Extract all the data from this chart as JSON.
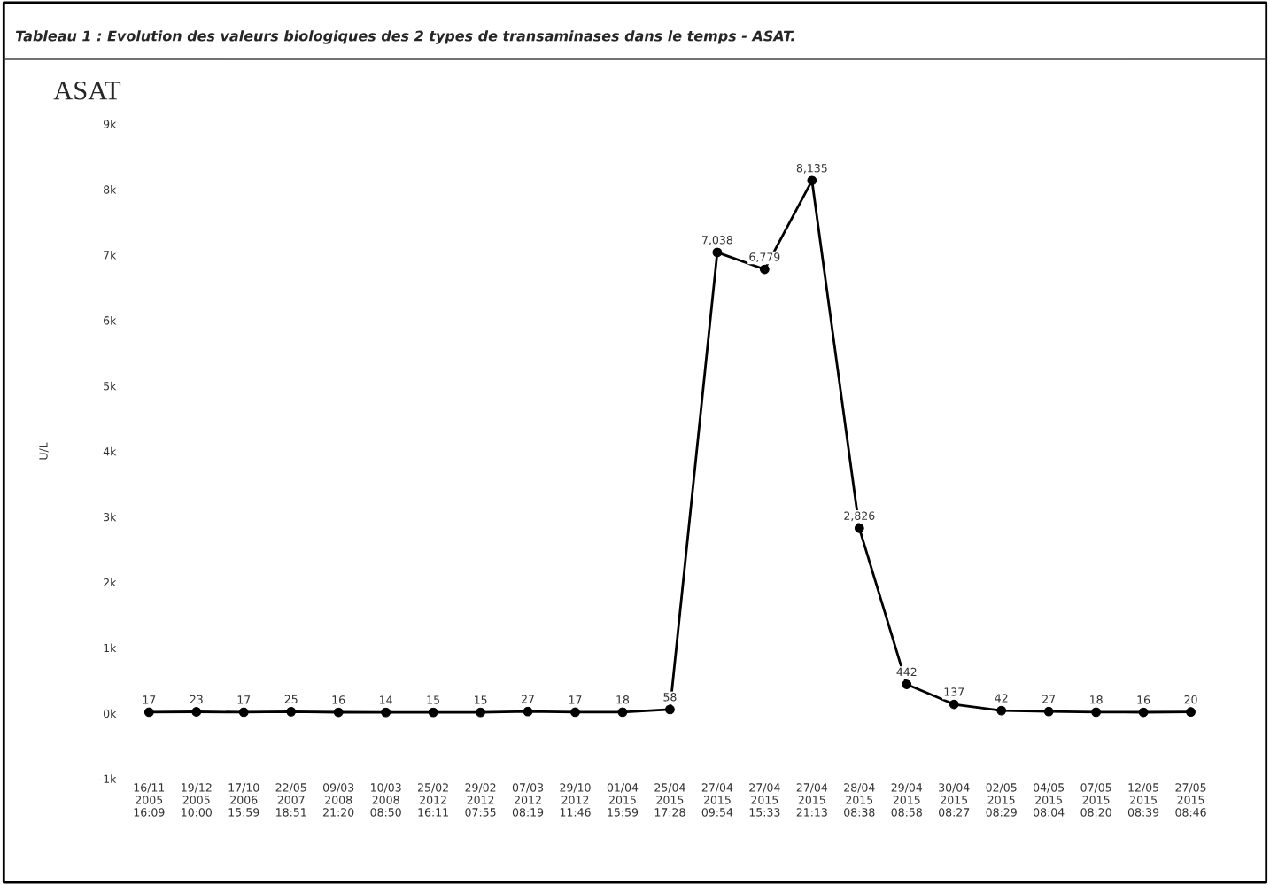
{
  "chart_data": {
    "type": "line",
    "title": "Tableau 1 : Evolution des valeurs biologiques des 2 types de transaminases dans le temps - ASAT.",
    "subtitle": "ASAT",
    "ylabel": "U/L",
    "categories": [
      "16/11\n2005\n16:09",
      "19/12\n2005\n10:00",
      "17/10\n2006\n15:59",
      "22/05\n2007\n18:51",
      "09/03\n2008\n21:20",
      "10/03\n2008\n08:50",
      "25/02\n2012\n16:11",
      "29/02\n2012\n07:55",
      "07/03\n2012\n08:19",
      "29/10\n2012\n11:46",
      "01/04\n2015\n15:59",
      "25/04\n2015\n17:28",
      "27/04\n2015\n09:54",
      "27/04\n2015\n15:33",
      "27/04\n2015\n21:13",
      "28/04\n2015\n08:38",
      "29/04\n2015\n08:58",
      "30/04\n2015\n08:27",
      "02/05\n2015\n08:29",
      "04/05\n2015\n08:04",
      "07/05\n2015\n08:20",
      "12/05\n2015\n08:39",
      "27/05\n2015\n08:46"
    ],
    "series": [
      {
        "color": "#000000",
        "values": [
          17,
          23,
          17,
          25,
          16,
          14,
          15,
          15,
          27,
          17,
          18,
          58,
          7038,
          6779,
          8135,
          2826,
          442,
          137,
          42,
          27,
          18,
          16,
          20
        ],
        "value_labels": [
          "17",
          "23",
          "17",
          "25",
          "16",
          "14",
          "15",
          "15",
          "27",
          "17",
          "18",
          "58",
          "7,038",
          "6,779",
          "8,135",
          "2,826",
          "442",
          "137",
          "42",
          "27",
          "18",
          "16",
          "20"
        ]
      }
    ],
    "ylim": [
      -1000,
      9000
    ],
    "yticks": [
      {
        "value": -1000,
        "label": "-1k"
      },
      {
        "value": 0,
        "label": "0k"
      },
      {
        "value": 1000,
        "label": "1k"
      },
      {
        "value": 2000,
        "label": "2k"
      },
      {
        "value": 3000,
        "label": "3k"
      },
      {
        "value": 4000,
        "label": "4k"
      },
      {
        "value": 5000,
        "label": "5k"
      },
      {
        "value": 6000,
        "label": "6k"
      },
      {
        "value": 7000,
        "label": "7k"
      },
      {
        "value": 8000,
        "label": "8k"
      },
      {
        "value": 9000,
        "label": "9k"
      }
    ],
    "grid": false,
    "legend": false,
    "marker": "circle",
    "line_style": "solid"
  }
}
